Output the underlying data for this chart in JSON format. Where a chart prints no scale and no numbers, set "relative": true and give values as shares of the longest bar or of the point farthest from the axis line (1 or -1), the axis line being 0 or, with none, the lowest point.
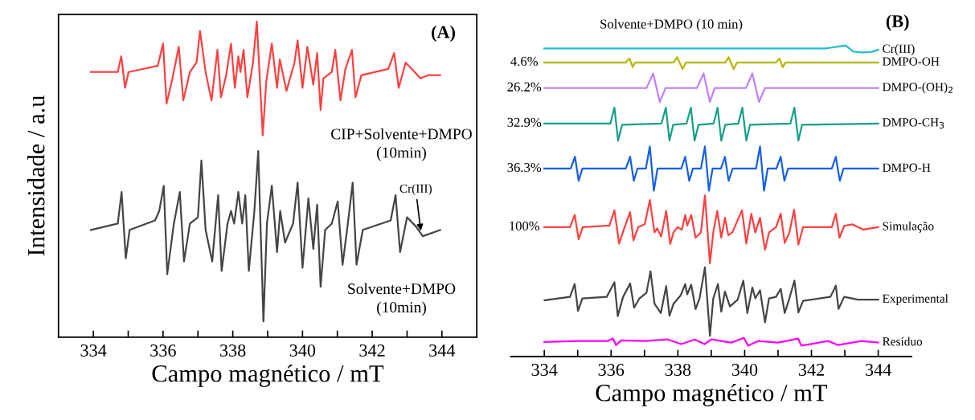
{
  "chart_data": [
    {
      "type": "line",
      "title": "(A)",
      "xlabel": "Campo magnético / mT",
      "ylabel": "Intensidade / a.u",
      "xlim": [
        333,
        345
      ],
      "xticks": [
        334,
        {
          "value": 335,
          "label": null
        },
        336,
        {
          "value": 337,
          "label": null
        },
        338,
        {
          "value": 339,
          "label": null
        },
        340,
        {
          "value": 341,
          "label": null
        },
        342,
        {
          "value": 343,
          "label": null
        },
        344
      ],
      "relative": true,
      "tick_labels": "x",
      "line_style": "solid",
      "series": [
        {
          "name": "CIP+Solvente+DMPO\n(10min)",
          "color": "#ff4040",
          "x": [
            333.93,
            334.7,
            334.8,
            334.91,
            335.01,
            335.85,
            336.0,
            336.1,
            336.27,
            336.45,
            336.58,
            336.77,
            336.96,
            337.06,
            337.22,
            337.39,
            337.56,
            337.66,
            337.81,
            337.95,
            338.06,
            338.16,
            338.22,
            338.31,
            338.42,
            338.58,
            338.69,
            338.86,
            338.96,
            339.12,
            339.27,
            339.35,
            339.54,
            339.77,
            339.86,
            340.0,
            340.14,
            340.31,
            340.42,
            340.52,
            340.6,
            340.84,
            340.94,
            341.09,
            341.23,
            341.42,
            341.52,
            341.69,
            342.46,
            342.63,
            342.76,
            342.96,
            343.22,
            343.38,
            343.61,
            343.95
          ],
          "values": [
            0.84,
            0.84,
            0.89,
            0.79,
            0.84,
            0.86,
            0.93,
            0.74,
            0.82,
            0.92,
            0.75,
            0.84,
            0.87,
            0.97,
            0.84,
            0.75,
            0.91,
            0.76,
            0.83,
            0.93,
            0.79,
            0.89,
            0.84,
            0.91,
            0.76,
            0.87,
            1.0,
            0.64,
            0.81,
            0.93,
            0.79,
            0.88,
            0.78,
            0.87,
            0.94,
            0.79,
            0.92,
            0.8,
            0.9,
            0.72,
            0.82,
            0.84,
            0.91,
            0.75,
            0.85,
            0.91,
            0.76,
            0.83,
            0.85,
            0.9,
            0.79,
            0.87,
            0.84,
            0.82,
            0.83,
            0.83
          ]
        },
        {
          "name": "Solvente+DMPO\n(10min)",
          "color": "#454545",
          "x": [
            333.93,
            334.7,
            334.81,
            334.93,
            335.04,
            335.77,
            335.89,
            336.02,
            336.12,
            336.31,
            336.48,
            336.6,
            336.77,
            337.0,
            337.1,
            337.22,
            337.41,
            337.58,
            337.68,
            337.85,
            337.95,
            338.04,
            338.16,
            338.27,
            338.36,
            338.46,
            338.62,
            338.73,
            338.88,
            338.98,
            339.12,
            339.27,
            339.36,
            339.5,
            339.73,
            339.86,
            340.0,
            340.17,
            340.31,
            340.42,
            340.52,
            340.65,
            340.84,
            341.01,
            341.15,
            341.29,
            341.44,
            341.55,
            341.73,
            342.53,
            342.67,
            342.8,
            343.0,
            343.26,
            343.45,
            343.95
          ],
          "values": [
            0.34,
            0.36,
            0.46,
            0.25,
            0.34,
            0.37,
            0.4,
            0.48,
            0.2,
            0.36,
            0.46,
            0.24,
            0.36,
            0.38,
            0.56,
            0.34,
            0.24,
            0.45,
            0.21,
            0.36,
            0.4,
            0.36,
            0.46,
            0.36,
            0.45,
            0.21,
            0.4,
            0.59,
            0.05,
            0.36,
            0.48,
            0.27,
            0.4,
            0.3,
            0.36,
            0.49,
            0.22,
            0.44,
            0.28,
            0.42,
            0.16,
            0.34,
            0.36,
            0.43,
            0.23,
            0.35,
            0.49,
            0.23,
            0.34,
            0.37,
            0.45,
            0.27,
            0.38,
            0.35,
            0.32,
            0.34
          ]
        }
      ],
      "annotations": [
        {
          "text": "Cr(III)",
          "x": 343.4,
          "y": 0.33
        }
      ]
    },
    {
      "type": "line",
      "title": "(B)",
      "subtitle": "Solvente+DMPO (10 min)",
      "xlabel": "Campo magnético / mT",
      "xlim": [
        333,
        345
      ],
      "xticks": [
        334,
        {
          "value": 335,
          "label": null
        },
        336,
        {
          "value": 337,
          "label": null
        },
        338,
        {
          "value": 339,
          "label": null
        },
        340,
        {
          "value": 341,
          "label": null
        },
        342,
        {
          "value": 343,
          "label": null
        },
        344
      ],
      "relative": true,
      "tick_labels": "x",
      "line_style": "solid",
      "series": [
        {
          "name": "Cr(III)",
          "color": "#1fbfcf",
          "x": [
            334.0,
            341.75,
            342.41,
            343.02,
            343.26,
            343.55,
            343.8,
            344.0
          ],
          "values": [
            0.99,
            0.99,
            0.99,
            1.0,
            0.98,
            0.977,
            0.979,
            0.986
          ]
        },
        {
          "name": "DMPO-OH",
          "color": "#b5b800",
          "x": [
            334.0,
            336.44,
            336.55,
            336.65,
            336.71,
            337.87,
            337.98,
            338.14,
            338.24,
            339.42,
            339.52,
            339.67,
            339.77,
            340.94,
            341.04,
            341.14,
            341.22,
            344.0
          ],
          "values": [
            0.945,
            0.945,
            0.958,
            0.93,
            0.945,
            0.945,
            0.962,
            0.924,
            0.945,
            0.945,
            0.962,
            0.924,
            0.945,
            0.945,
            0.958,
            0.93,
            0.945,
            0.945
          ]
        },
        {
          "name": "DMPO-(OH)$_{2}$",
          "color": "#c080ff",
          "x": [
            334.0,
            337.06,
            337.26,
            337.46,
            337.63,
            338.57,
            338.77,
            338.96,
            339.1,
            340.04,
            340.23,
            340.43,
            340.61,
            344.0
          ],
          "values": [
            0.863,
            0.863,
            0.91,
            0.818,
            0.863,
            0.863,
            0.91,
            0.818,
            0.863,
            0.863,
            0.91,
            0.818,
            0.863,
            0.863
          ]
        },
        {
          "name": "DMPO-CH$_{3}$",
          "color": "#17a085",
          "x": [
            334.0,
            335.98,
            336.1,
            336.21,
            336.33,
            337.51,
            337.64,
            337.75,
            337.86,
            338.26,
            338.39,
            338.5,
            338.62,
            339.07,
            339.19,
            339.3,
            339.42,
            339.81,
            339.93,
            340.05,
            340.16,
            341.37,
            341.49,
            341.61,
            341.72,
            344.0
          ],
          "values": [
            0.749,
            0.749,
            0.8,
            0.694,
            0.745,
            0.749,
            0.8,
            0.694,
            0.745,
            0.749,
            0.8,
            0.694,
            0.745,
            0.749,
            0.8,
            0.694,
            0.745,
            0.749,
            0.8,
            0.694,
            0.745,
            0.749,
            0.8,
            0.694,
            0.745,
            0.749
          ]
        },
        {
          "name": "DMPO-H",
          "color": "#1560e0",
          "x": [
            334.0,
            334.79,
            334.92,
            335.03,
            335.14,
            336.44,
            336.57,
            336.68,
            336.79,
            337.04,
            337.16,
            337.28,
            337.39,
            338.1,
            338.22,
            338.34,
            338.45,
            338.69,
            338.81,
            338.93,
            339.04,
            339.29,
            339.41,
            339.52,
            339.64,
            340.34,
            340.46,
            340.58,
            340.69,
            340.95,
            341.08,
            341.19,
            341.3,
            342.61,
            342.73,
            342.85,
            342.96,
            344.0
          ],
          "values": [
            0.604,
            0.604,
            0.642,
            0.565,
            0.604,
            0.604,
            0.642,
            0.565,
            0.604,
            0.604,
            0.675,
            0.533,
            0.604,
            0.604,
            0.642,
            0.565,
            0.604,
            0.604,
            0.675,
            0.533,
            0.604,
            0.604,
            0.642,
            0.565,
            0.604,
            0.604,
            0.675,
            0.533,
            0.604,
            0.604,
            0.642,
            0.565,
            0.604,
            0.604,
            0.642,
            0.565,
            0.604,
            0.604
          ]
        },
        {
          "name": "Simulação",
          "color": "#ff4040",
          "x": [
            334.0,
            334.77,
            334.91,
            335.03,
            335.15,
            335.95,
            336.1,
            336.24,
            336.38,
            336.57,
            336.67,
            336.81,
            337.01,
            337.16,
            337.3,
            337.38,
            337.5,
            337.65,
            337.77,
            337.87,
            337.99,
            338.12,
            338.22,
            338.28,
            338.4,
            338.53,
            338.69,
            338.81,
            338.96,
            339.06,
            339.18,
            339.3,
            339.41,
            339.51,
            339.63,
            339.92,
            340.05,
            340.2,
            340.32,
            340.46,
            340.61,
            340.73,
            340.94,
            341.08,
            341.2,
            341.34,
            341.48,
            341.61,
            341.75,
            342.61,
            342.73,
            342.84,
            342.98,
            343.22,
            343.55,
            344.0
          ],
          "values": [
            0.416,
            0.416,
            0.455,
            0.377,
            0.416,
            0.421,
            0.47,
            0.363,
            0.408,
            0.464,
            0.373,
            0.416,
            0.425,
            0.503,
            0.399,
            0.412,
            0.386,
            0.468,
            0.362,
            0.399,
            0.416,
            0.408,
            0.455,
            0.421,
            0.455,
            0.382,
            0.399,
            0.518,
            0.3,
            0.399,
            0.468,
            0.382,
            0.446,
            0.39,
            0.399,
            0.47,
            0.363,
            0.459,
            0.399,
            0.446,
            0.343,
            0.399,
            0.416,
            0.459,
            0.365,
            0.399,
            0.472,
            0.36,
            0.416,
            0.416,
            0.459,
            0.382,
            0.42,
            0.425,
            0.408,
            0.416
          ]
        },
        {
          "name": "Experimental",
          "color": "#454545",
          "x": [
            334.01,
            334.77,
            334.91,
            335.01,
            335.14,
            335.87,
            336.1,
            336.2,
            336.36,
            336.57,
            336.69,
            336.85,
            337.06,
            337.18,
            337.3,
            337.49,
            337.65,
            337.75,
            337.87,
            338.08,
            338.22,
            338.28,
            338.4,
            338.53,
            338.65,
            338.81,
            338.96,
            339.06,
            339.2,
            339.3,
            339.41,
            339.56,
            339.79,
            339.96,
            340.08,
            340.23,
            340.32,
            340.46,
            340.61,
            340.73,
            340.94,
            341.08,
            341.2,
            341.34,
            341.49,
            341.61,
            341.75,
            342.57,
            342.73,
            342.81,
            342.98,
            343.39,
            344.0
          ],
          "values": [
            0.181,
            0.192,
            0.233,
            0.147,
            0.187,
            0.192,
            0.239,
            0.13,
            0.192,
            0.235,
            0.157,
            0.187,
            0.205,
            0.274,
            0.17,
            0.14,
            0.226,
            0.131,
            0.17,
            0.196,
            0.233,
            0.2,
            0.231,
            0.153,
            0.187,
            0.287,
            0.067,
            0.187,
            0.233,
            0.144,
            0.209,
            0.161,
            0.183,
            0.244,
            0.14,
            0.222,
            0.187,
            0.213,
            0.11,
            0.187,
            0.192,
            0.218,
            0.14,
            0.187,
            0.244,
            0.142,
            0.179,
            0.192,
            0.228,
            0.153,
            0.192,
            0.183,
            0.183
          ]
        },
        {
          "name": "Resíduo",
          "color": "#ff00ff",
          "x": [
            334.0,
            335.0,
            335.9,
            336.05,
            336.15,
            336.3,
            337.0,
            337.7,
            338.1,
            338.5,
            338.8,
            339.0,
            339.6,
            339.98,
            340.1,
            340.4,
            341.0,
            341.6,
            341.7,
            342.5,
            342.8,
            343.5,
            344.0
          ],
          "values": [
            0.047,
            0.05,
            0.05,
            0.058,
            0.037,
            0.052,
            0.05,
            0.055,
            0.04,
            0.055,
            0.04,
            0.055,
            0.045,
            0.06,
            0.035,
            0.05,
            0.045,
            0.058,
            0.035,
            0.05,
            0.037,
            0.05,
            0.045
          ]
        }
      ],
      "annotations": [
        "4.6%",
        "26.2%",
        "32.9%",
        "36.3%",
        "100%"
      ]
    }
  ]
}
